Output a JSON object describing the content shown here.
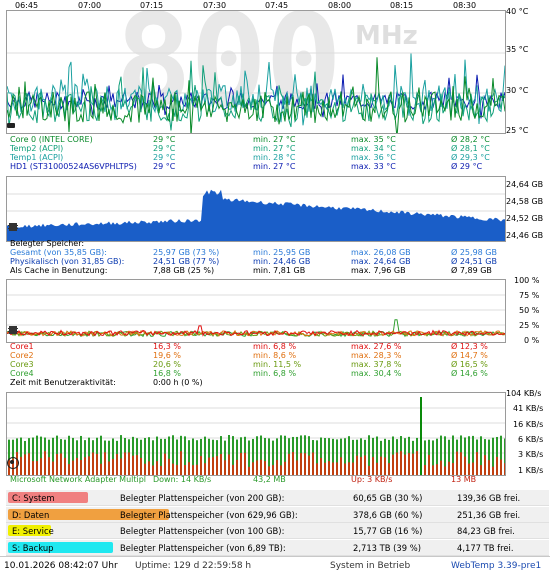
{
  "time_axis": [
    "06:45",
    "07:00",
    "07:15",
    "07:30",
    "07:45",
    "08:00",
    "08:15",
    "08:30"
  ],
  "temp_panel": {
    "big_display": "800",
    "big_unit": "MHz",
    "y_ticks": [
      "40 °C",
      "35 °C",
      "30 °C",
      "25 °C"
    ],
    "sensors": [
      {
        "name": "Core 0 (INTEL CORE)",
        "cur": "29 °C",
        "min": "min. 27 °C",
        "max": "max. 35 °C",
        "avg": "Ø 28,2 °C",
        "color": "#0a8a2a"
      },
      {
        "name": "Temp2 (ACPI)",
        "cur": "29 °C",
        "min": "min. 27 °C",
        "max": "max. 34 °C",
        "avg": "Ø 28,1 °C",
        "color": "#11a07a"
      },
      {
        "name": "Temp1 (ACPI)",
        "cur": "29 °C",
        "min": "min. 28 °C",
        "max": "max. 36 °C",
        "avg": "Ø 29,3 °C",
        "color": "#1aa0a0"
      },
      {
        "name": "HD1 (ST31000524AS6VPHLTPS)",
        "cur": "29 °C",
        "min": "min. 27 °C",
        "max": "max. 33 °C",
        "avg": "Ø 29 °C",
        "color": "#0a1ab0"
      }
    ]
  },
  "mem_panel": {
    "y_ticks": [
      "24,64 GB",
      "24,58 GB",
      "24,52 GB",
      "24,46 GB"
    ],
    "title": "Belegter Speicher:",
    "rows": [
      {
        "name": "Gesamt (von 35,85 GB):",
        "cur": "25,97 GB (73 %)",
        "min": "min. 25,95 GB",
        "max": "max. 26,08 GB",
        "avg": "Ø 25,98 GB",
        "color": "#2a7ad8"
      },
      {
        "name": "Physikalisch (von 31,85 GB):",
        "cur": "24,51 GB (77 %)",
        "min": "min. 24,46 GB",
        "max": "max. 24,64 GB",
        "avg": "Ø 24,51 GB",
        "color": "#0a3ab0"
      },
      {
        "name": "Als Cache in Benutzung:",
        "cur": "7,88 GB (25 %)",
        "min": "min. 7,81 GB",
        "max": "max. 7,96 GB",
        "avg": "Ø 7,89 GB",
        "color": "#000000"
      }
    ]
  },
  "cpu_panel": {
    "y_ticks": [
      "100 %",
      "75 %",
      "50 %",
      "25 %",
      "0 %"
    ],
    "cores": [
      {
        "name": "Core1",
        "cur": "16,3 %",
        "min": "min. 6,8 %",
        "max": "max. 27,6 %",
        "avg": "Ø 12,3 %",
        "color": "#e01010"
      },
      {
        "name": "Core2",
        "cur": "19,6 %",
        "min": "min. 8,6 %",
        "max": "max. 28,3 %",
        "avg": "Ø 14,7 %",
        "color": "#e07010"
      },
      {
        "name": "Core3",
        "cur": "20,6 %",
        "min": "min. 11,5 %",
        "max": "max. 37,8 %",
        "avg": "Ø 16,5 %",
        "color": "#6a9a10"
      },
      {
        "name": "Core4",
        "cur": "16,8 %",
        "min": "min. 6,8 %",
        "max": "max. 30,4 %",
        "avg": "Ø 14,6 %",
        "color": "#30a030"
      }
    ],
    "idle_label": "Zeit mit Benutzeraktivität:",
    "idle_value": "0:00 h (0 %)"
  },
  "net_panel": {
    "y_ticks": [
      "104 KB/s",
      "41 KB/s",
      "16 KB/s",
      "6 KB/s",
      "3 KB/s",
      "1 KB/s"
    ],
    "adapter": "Microsoft Network Adapter Multipl",
    "down": "Down: 14 KB/s",
    "down_total": "43,2 MB",
    "up": "Up: 3 KB/s",
    "up_total": "13 MB"
  },
  "disks": [
    {
      "label": "C: System",
      "desc": "Belegter Plattenspeicher (von 200 GB):",
      "used": "60,65 GB (30 %)",
      "free": "139,36 GB frei.",
      "fill": 0.3,
      "color": "#f08080"
    },
    {
      "label": "D: Daten",
      "desc": "Belegter Plattenspeicher (von 629,96 GB):",
      "used": "378,6 GB (60 %)",
      "free": "251,36 GB frei.",
      "fill": 0.6,
      "color": "#f0a040"
    },
    {
      "label": "E: Service",
      "desc": "Belegter Plattenspeicher (von 100 GB):",
      "used": "15,77 GB (16 %)",
      "free": "84,23 GB frei.",
      "fill": 0.16,
      "color": "#f0f000"
    },
    {
      "label": "S: Backup",
      "desc": "Belegter Plattenspeicher (von 6,89 TB):",
      "used": "2,713 TB (39 %)",
      "free": "4,177 TB frei.",
      "fill": 0.39,
      "color": "#20e8f0"
    }
  ],
  "status": {
    "datetime": "10.01.2026 08:42:07 Uhr",
    "uptime": "Uptime: 129 d 22:59:58 h",
    "state": "System in Betrieb",
    "version": "WebTemp 3.39-pre1"
  },
  "colors": {
    "mem_fill": "#1a5ec8",
    "net_down": "#2a9a2a",
    "net_up": "#c04010",
    "net_spike": "#0a8a0a"
  }
}
